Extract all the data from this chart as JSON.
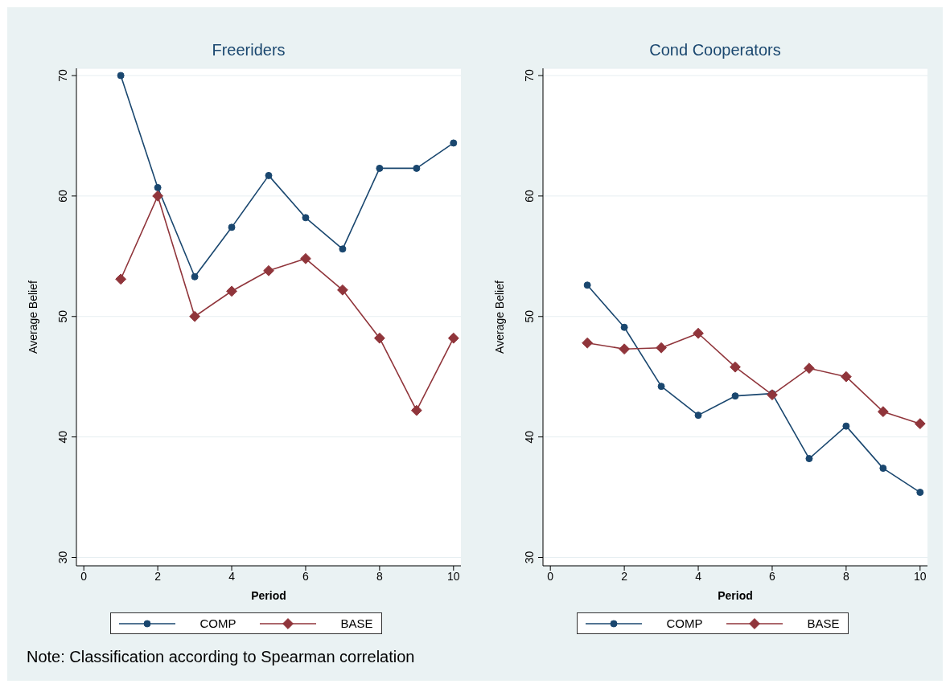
{
  "chart_data": [
    {
      "type": "line",
      "title": "Freeriders",
      "xlabel": "Period",
      "ylabel": "Average Belief",
      "x": [
        1,
        2,
        3,
        4,
        5,
        6,
        7,
        8,
        9,
        10
      ],
      "series": [
        {
          "name": "COMP",
          "color": "#1a476f",
          "marker": "circle",
          "values": [
            70,
            60.7,
            53.3,
            57.4,
            61.7,
            58.2,
            55.6,
            62.3,
            62.3,
            64.4
          ]
        },
        {
          "name": "BASE",
          "color": "#90353b",
          "marker": "diamond",
          "values": [
            53.1,
            60,
            50,
            52.1,
            53.8,
            54.8,
            52.2,
            48.2,
            42.2,
            48.2
          ]
        }
      ],
      "xlim": [
        -0.2,
        10.2
      ],
      "xticks": [
        0,
        2,
        4,
        6,
        8,
        10
      ],
      "ylim": [
        29.3,
        70.6
      ],
      "yticks": [
        30,
        40,
        50,
        60,
        70
      ],
      "grid": "y",
      "legend": "bottom",
      "line_style": "solid",
      "annotations": [
        "Note: Classification according to Spearman correlation"
      ]
    },
    {
      "type": "line",
      "title": "Cond Cooperators",
      "xlabel": "Period",
      "ylabel": "Average Belief",
      "x": [
        1,
        2,
        3,
        4,
        5,
        6,
        7,
        8,
        9,
        10
      ],
      "series": [
        {
          "name": "COMP",
          "color": "#1a476f",
          "marker": "circle",
          "values": [
            52.6,
            49.1,
            44.2,
            41.8,
            43.4,
            43.6,
            38.2,
            40.9,
            37.4,
            35.4
          ]
        },
        {
          "name": "BASE",
          "color": "#90353b",
          "marker": "diamond",
          "values": [
            47.8,
            47.3,
            47.4,
            48.6,
            45.8,
            43.5,
            45.7,
            45.0,
            42.1,
            41.1
          ]
        }
      ],
      "xlim": [
        -0.2,
        10.2
      ],
      "xticks": [
        0,
        2,
        4,
        6,
        8,
        10
      ],
      "ylim": [
        29.3,
        70.6
      ],
      "yticks": [
        30,
        40,
        50,
        60,
        70
      ],
      "grid": "y",
      "legend": "bottom",
      "line_style": "solid"
    }
  ]
}
